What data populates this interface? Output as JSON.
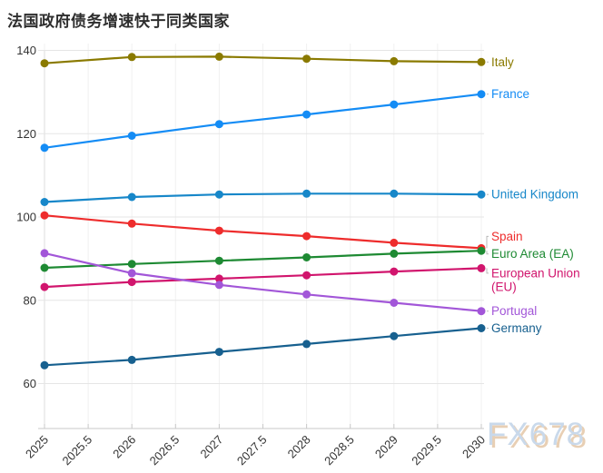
{
  "title": "法国政府债务增速快于同类国家",
  "watermark": {
    "text": "FX678",
    "color": "#c9d9eb",
    "shadow_color": "#e8cfb4"
  },
  "chart_data": {
    "type": "line",
    "x": [
      2025,
      2026,
      2027,
      2028,
      2029,
      2030
    ],
    "x_tick_labels": [
      "2025",
      "2025.5",
      "2026",
      "2026.5",
      "2027",
      "2027.5",
      "2028",
      "2028.5",
      "2029",
      "2029.5",
      "2030"
    ],
    "y_ticks": [
      60,
      80,
      100,
      120,
      140
    ],
    "ylim": [
      49,
      142
    ],
    "xlabel": "",
    "ylabel": "",
    "grid": true,
    "legend_position": "right-of-line-ends",
    "series": [
      {
        "name": "Italy",
        "label_lines": [
          "Italy"
        ],
        "color": "#8a7a00",
        "values": [
          136.9,
          138.4,
          138.5,
          138.0,
          137.4,
          137.2
        ]
      },
      {
        "name": "France",
        "label_lines": [
          "France"
        ],
        "color": "#148cf5",
        "values": [
          116.6,
          119.5,
          122.3,
          124.6,
          127.0,
          129.5
        ]
      },
      {
        "name": "United Kingdom",
        "label_lines": [
          "United Kingdom"
        ],
        "color": "#1787c9",
        "values": [
          103.6,
          104.8,
          105.4,
          105.6,
          105.6,
          105.4
        ]
      },
      {
        "name": "Spain",
        "label_lines": [
          "Spain"
        ],
        "color": "#ee2c2c",
        "values": [
          100.4,
          98.4,
          96.7,
          95.4,
          93.8,
          92.5
        ]
      },
      {
        "name": "Euro Area (EA)",
        "label_lines": [
          "Euro Area (EA)"
        ],
        "color": "#1e8a33",
        "values": [
          87.8,
          88.7,
          89.5,
          90.3,
          91.2,
          91.9
        ]
      },
      {
        "name": "European Union (EU)",
        "label_lines": [
          "European Union",
          "(EU)"
        ],
        "color": "#d1156d",
        "values": [
          83.2,
          84.4,
          85.2,
          86.0,
          86.9,
          87.7
        ]
      },
      {
        "name": "Portugal",
        "label_lines": [
          "Portugal"
        ],
        "color": "#a256d8",
        "values": [
          91.3,
          86.5,
          83.7,
          81.4,
          79.4,
          77.4
        ]
      },
      {
        "name": "Germany",
        "label_lines": [
          "Germany"
        ],
        "color": "#17608f",
        "values": [
          64.4,
          65.7,
          67.6,
          69.5,
          71.4,
          73.3
        ]
      }
    ]
  }
}
